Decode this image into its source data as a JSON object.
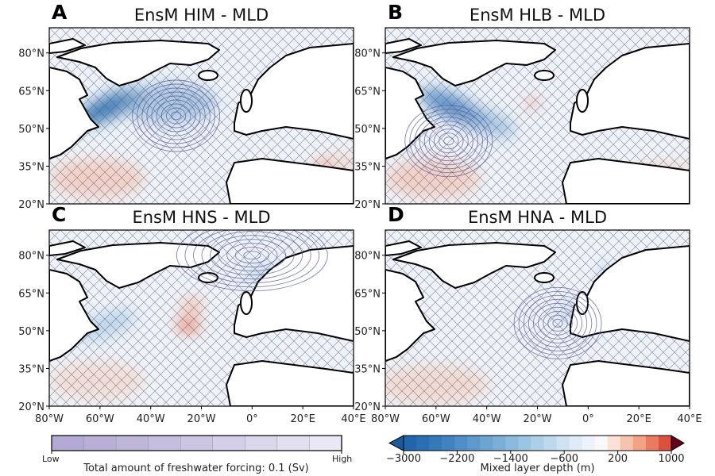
{
  "panels": [
    {
      "letter": "A",
      "title": "EnsM HIM - MLD",
      "forcing_center_lonlat": [
        -30,
        55
      ]
    },
    {
      "letter": "B",
      "title": "EnsM HLB - MLD",
      "forcing_center_lonlat": [
        -55,
        45
      ]
    },
    {
      "letter": "C",
      "title": "EnsM HNS - MLD",
      "forcing_center_lonlat": [
        0,
        80
      ]
    },
    {
      "letter": "D",
      "title": "EnsM HNA - MLD",
      "forcing_center_lonlat": [
        -12,
        53
      ]
    }
  ],
  "lat_ticks": [
    "80°N",
    "65°N",
    "50°N",
    "35°N",
    "20°N"
  ],
  "lon_ticks": [
    "80°W",
    "60°W",
    "40°W",
    "20°W",
    "0°",
    "20°E",
    "40°E"
  ],
  "colorbar_forcing": {
    "label": "Total amount of freshwater forcing: 0.1 (Sv)",
    "low": "Low",
    "high": "High",
    "colors": [
      "#b4a9d4",
      "#b9afd7",
      "#bfb6da",
      "#c6bedf",
      "#cdc6e3",
      "#d4cee8",
      "#dbd7ec",
      "#e2dff0",
      "#eae8f4"
    ]
  },
  "colorbar_mld": {
    "label": "Mixed layer depth (m)",
    "ticks": [
      "−3000",
      "−2200",
      "−1400",
      "−600",
      "200",
      "1000"
    ],
    "range": [
      -3000,
      1000
    ],
    "colors": [
      "#2166ac",
      "#2a6fb3",
      "#3479ba",
      "#4183c0",
      "#4f8ec6",
      "#5d99cc",
      "#6ca4d2",
      "#7bafd8",
      "#8bbade",
      "#9cc5e3",
      "#adcfe8",
      "#bed9ed",
      "#cfe2f2",
      "#dfebf7",
      "#edf3fa",
      "#f9f9fb",
      "#fbe0d6",
      "#f8c3ae",
      "#f3a285",
      "#ea7a60",
      "#dd4f3f"
    ],
    "under_color": "#1c5a9c",
    "over_color": "#67001f"
  },
  "colors": {
    "ocean": "#eef3fb",
    "land": "#ffffff",
    "contour": "#5a5a9a",
    "hatch": "#555555"
  }
}
